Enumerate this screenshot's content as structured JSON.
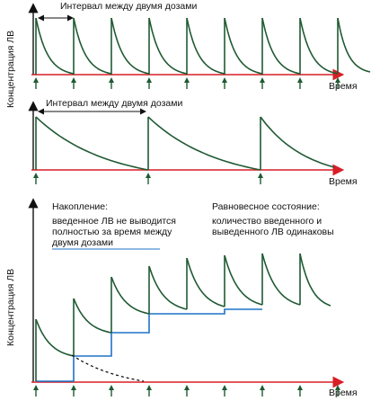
{
  "colors": {
    "curve": "#1f5a33",
    "time_axis": "#d81f26",
    "arrows": "#1f5a33",
    "accumulation_step": "#1e73c8",
    "axis": "#111111",
    "elimination_dashed": "#111111"
  },
  "panel1": {
    "ylabel": "Концентрация ЛВ",
    "xlabel": "Время",
    "interval_label": "Интервал между двумя дозами"
  },
  "panel2": {
    "interval_label": "Интервал между двумя дозами",
    "xlabel": "Время"
  },
  "panel3": {
    "ylabel": "Концентрация ЛВ",
    "xlabel": "Время",
    "accumulation_title": "Накопление:",
    "accumulation_lines": [
      "введенное ЛВ не выводится",
      "полностью за время между",
      "двумя дозами"
    ],
    "steady_title": "Равновесное состояние:",
    "steady_lines": [
      "количество введенного и",
      "выведенного ЛВ одинаковы"
    ]
  },
  "chart_data": [
    {
      "type": "line",
      "title": "",
      "xlabel": "Время",
      "ylabel": "Концентрация ЛВ",
      "description_note": "",
      "doses": 9,
      "series": [
        {
          "name": "",
          "values": [
            1,
            0.08,
            1,
            0.08,
            1,
            0.08,
            1,
            0.08,
            1,
            0.08,
            1,
            0.08,
            1,
            0.08,
            1,
            0.08,
            1,
            0.1
          ]
        }
      ]
    },
    {
      "type": "line",
      "title": "",
      "xlabel": "Время",
      "ylabel": "",
      "doses": 3,
      "series": [
        {
          "name": "",
          "values": [
            1,
            0.0,
            1,
            0.0,
            1,
            0.05
          ]
        }
      ]
    },
    {
      "type": "line",
      "title": "",
      "xlabel": "Время",
      "ylabel": "Концентрация ЛВ",
      "doses": 8,
      "series": [
        {
          "name": "",
          "peaks": [
            0.46,
            0.69,
            0.82,
            0.89,
            0.94,
            0.96,
            0.97,
            0.98
          ],
          "troughs": [
            0.0,
            0.23,
            0.36,
            0.43,
            0.48,
            0.5,
            0.51,
            0.52,
            0.6
          ]
        }
      ]
    }
  ]
}
